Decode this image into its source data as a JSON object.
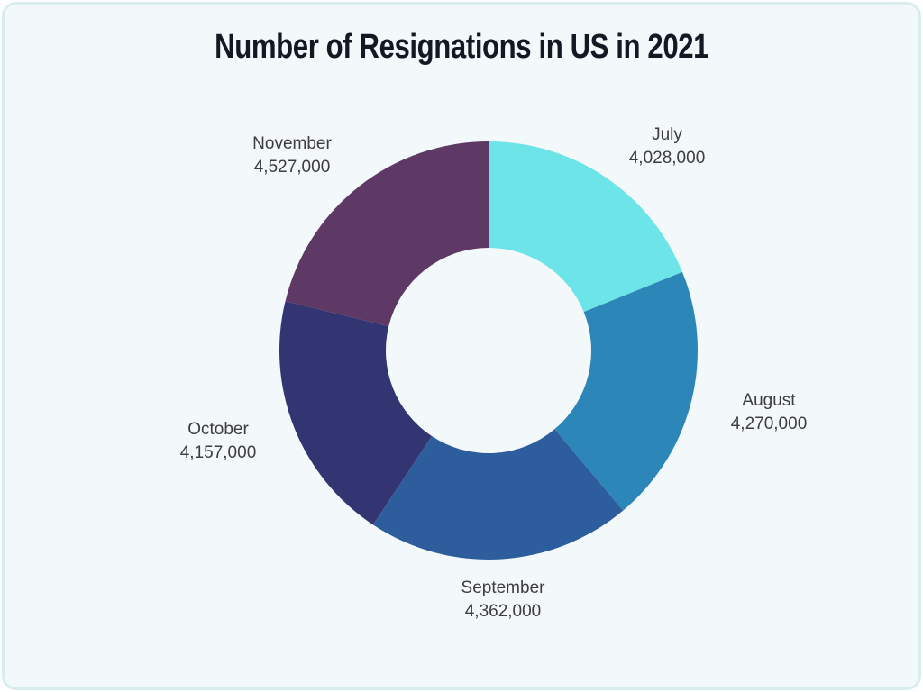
{
  "title": "Number of Resignations in US in 2021",
  "colors": {
    "page_background": "#fdfeff",
    "card_background": "#f3f8fb",
    "card_border": "#d9ecee",
    "title_text": "#131823",
    "label_text": "#3d3d3d"
  },
  "chart_data": {
    "type": "pie",
    "subtype": "donut",
    "title": "Number of Resignations in US in 2021",
    "categories": [
      "July",
      "August",
      "September",
      "October",
      "November"
    ],
    "values": [
      4028000,
      4270000,
      4362000,
      4157000,
      4527000
    ],
    "total": 21344000,
    "slices": [
      {
        "label": "July",
        "value": 4028000,
        "value_formatted": "4,028,000",
        "color": "#6ce4e8"
      },
      {
        "label": "August",
        "value": 4270000,
        "value_formatted": "4,270,000",
        "color": "#2d86b8"
      },
      {
        "label": "September",
        "value": 4362000,
        "value_formatted": "4,362,000",
        "color": "#2e5d9d"
      },
      {
        "label": "October",
        "value": 4157000,
        "value_formatted": "4,157,000",
        "color": "#333572"
      },
      {
        "label": "November",
        "value": 4527000,
        "value_formatted": "4,527,000",
        "color": "#5e3966"
      }
    ],
    "start_angle_deg": 0,
    "direction": "clockwise",
    "inner_radius_ratio": 0.49,
    "legend": "none",
    "data_labels": "outside",
    "label_format": "name + thousands-separated value"
  }
}
